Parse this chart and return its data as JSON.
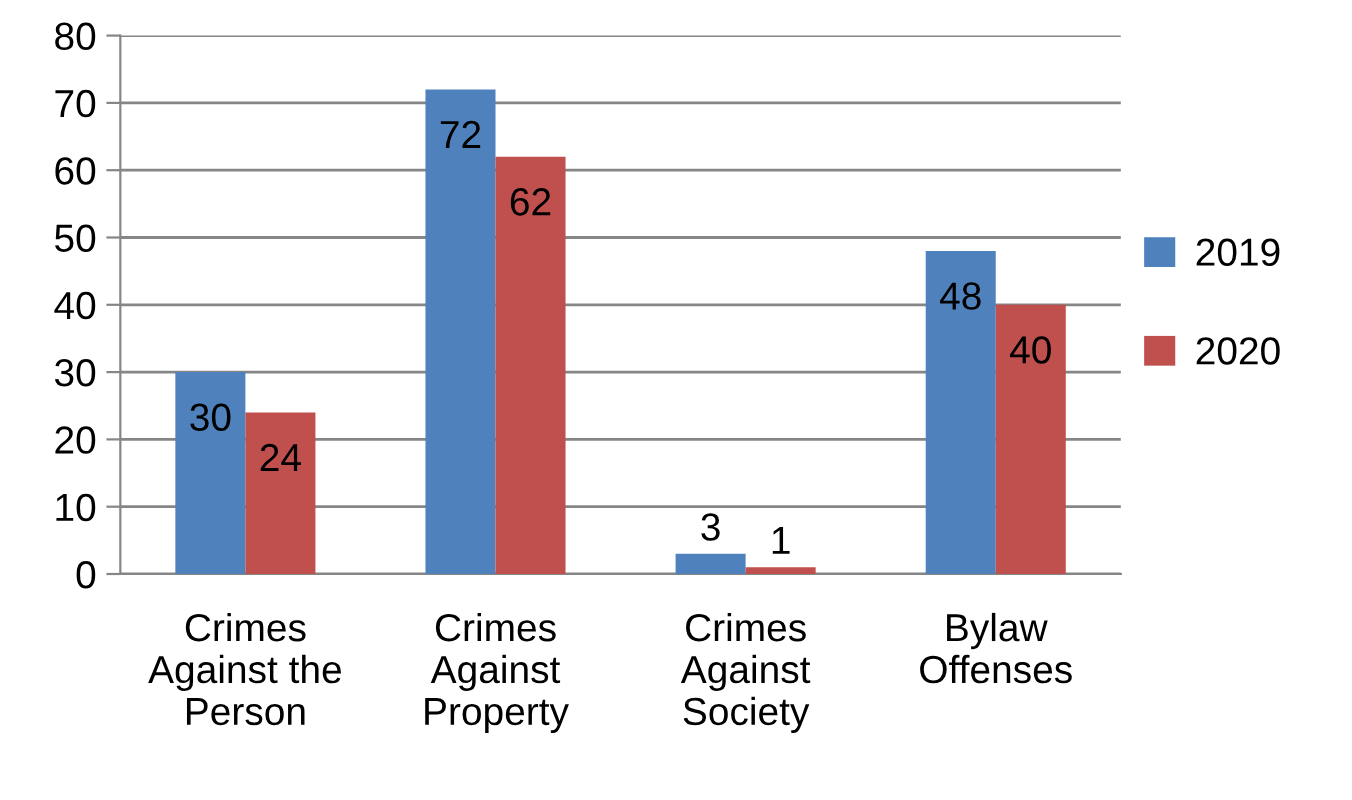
{
  "chart_data": {
    "type": "bar",
    "categories": [
      "Crimes\nAgainst the\nPerson",
      "Crimes\nAgainst\nProperty",
      "Crimes\nAgainst\nSociety",
      "Bylaw\nOffenses"
    ],
    "series": [
      {
        "name": "2019",
        "color": "#4f81bd",
        "values": [
          30,
          72,
          3,
          48
        ]
      },
      {
        "name": "2020",
        "color": "#c0504d",
        "values": [
          24,
          62,
          1,
          40
        ]
      }
    ],
    "ylim": [
      0,
      80
    ],
    "yticks": [
      0,
      10,
      20,
      30,
      40,
      50,
      60,
      70,
      80
    ],
    "grid": "y",
    "legend": "right",
    "data_labels": true
  }
}
